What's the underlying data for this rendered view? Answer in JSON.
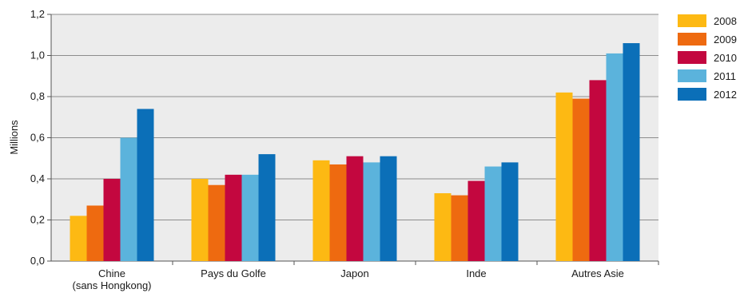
{
  "chart_data": {
    "type": "bar",
    "ylabel": "Millions",
    "ylim": [
      0,
      1.2
    ],
    "yticks": [
      "0,0",
      "0,2",
      "0,4",
      "0,6",
      "0,8",
      "1,0",
      "1,2"
    ],
    "grid": true,
    "legend_position": "right",
    "categories": [
      [
        "Chine",
        "(sans Hongkong)"
      ],
      [
        "Pays du Golfe"
      ],
      [
        "Japon"
      ],
      [
        "Inde"
      ],
      [
        "Autres Asie"
      ]
    ],
    "series": [
      {
        "name": "2008",
        "color": "#FDB913",
        "values": [
          0.22,
          0.4,
          0.49,
          0.33,
          0.82
        ]
      },
      {
        "name": "2009",
        "color": "#EE6A10",
        "values": [
          0.27,
          0.37,
          0.47,
          0.32,
          0.79
        ]
      },
      {
        "name": "2010",
        "color": "#C3073F",
        "values": [
          0.4,
          0.42,
          0.51,
          0.39,
          0.88
        ]
      },
      {
        "name": "2011",
        "color": "#5BB3DC",
        "values": [
          0.6,
          0.42,
          0.48,
          0.46,
          1.01
        ]
      },
      {
        "name": "2012",
        "color": "#0B6FB8",
        "values": [
          0.74,
          0.52,
          0.51,
          0.48,
          1.06
        ]
      }
    ]
  }
}
